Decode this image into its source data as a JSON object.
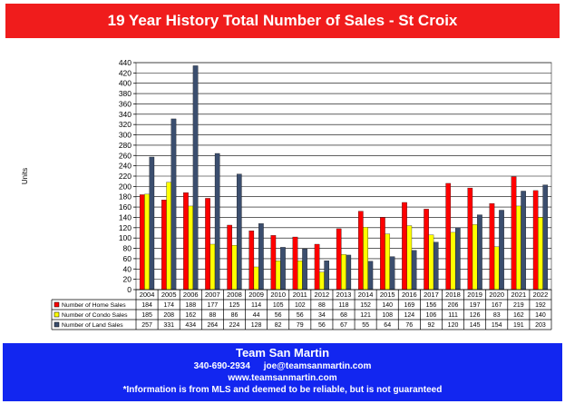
{
  "header": {
    "title": "19 Year History Total Number of Sales - St Croix"
  },
  "footer": {
    "brand": "Team San Martin",
    "phone": "340-690-2934",
    "email": "joe@teamsanmartin.com",
    "website": "www.teamsanmartin.com",
    "disclaimer": "*Information is from MLS and deemed to be reliable, but is not guaranteed"
  },
  "colors": {
    "home": "#ff0000",
    "condo": "#ffff00",
    "land": "#3b4e6e"
  },
  "chart_data": {
    "type": "bar",
    "title": "19 Year History Total Number of Sales - St Croix",
    "ylabel": "Units",
    "xlabel": "",
    "ylim": [
      0,
      440
    ],
    "ytick_step": 20,
    "grid": true,
    "legend": "table-below",
    "categories": [
      "2004",
      "2005",
      "2006",
      "2007",
      "2008",
      "2009",
      "2010",
      "2011",
      "2012",
      "2013",
      "2014",
      "2015",
      "2016",
      "2017",
      "2018",
      "2019",
      "2020",
      "2021",
      "2022"
    ],
    "series": [
      {
        "name": "Number of Home Sales",
        "color": "#ff0000",
        "values": [
          184,
          174,
          188,
          177,
          125,
          114,
          105,
          102,
          88,
          118,
          152,
          140,
          169,
          156,
          206,
          197,
          167,
          219,
          192
        ]
      },
      {
        "name": "Number of Condo Sales",
        "color": "#ffff00",
        "values": [
          185,
          208,
          162,
          88,
          86,
          44,
          56,
          56,
          34,
          68,
          121,
          108,
          124,
          106,
          111,
          126,
          83,
          162,
          140
        ]
      },
      {
        "name": "Number of Land Sales",
        "color": "#3b4e6e",
        "values": [
          257,
          331,
          434,
          264,
          224,
          128,
          82,
          79,
          56,
          67,
          55,
          64,
          76,
          92,
          120,
          145,
          154,
          191,
          203
        ]
      }
    ]
  }
}
